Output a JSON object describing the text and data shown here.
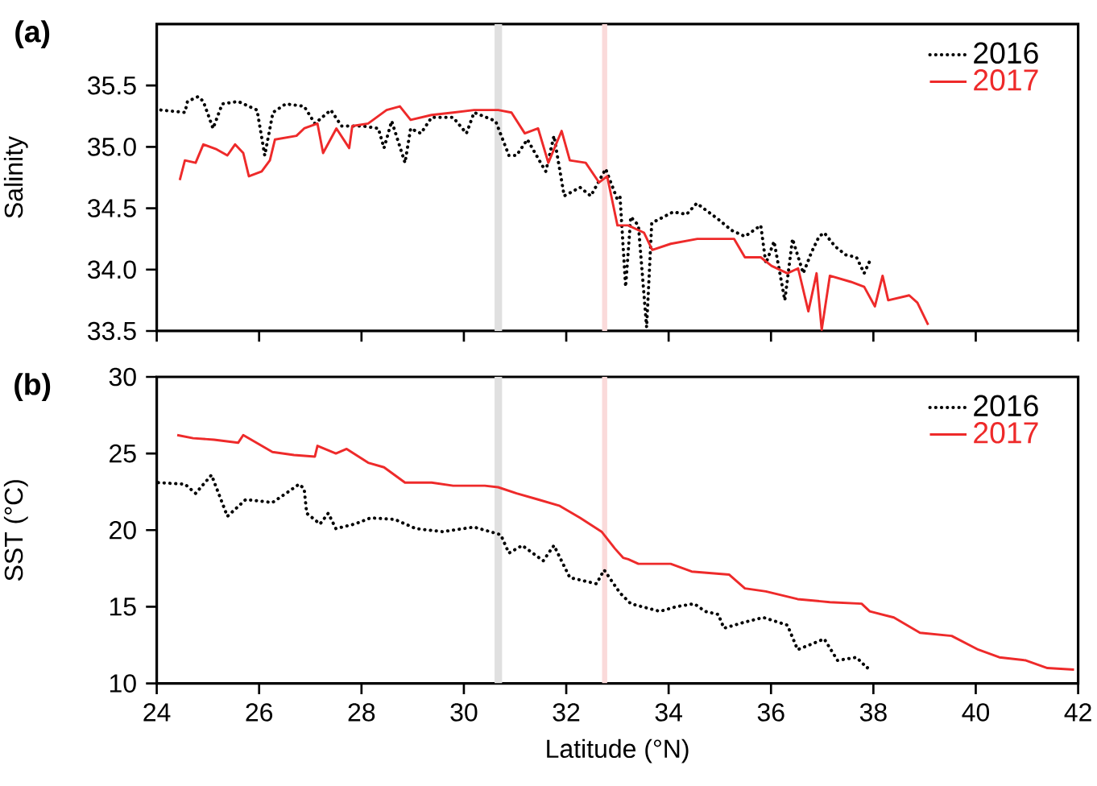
{
  "chart_data": [
    {
      "type": "line",
      "title": "(a)",
      "ylabel": "Salinity",
      "xlim": [
        24,
        42
      ],
      "xticks": [
        24,
        26,
        28,
        30,
        32,
        34,
        36,
        38,
        40,
        42
      ],
      "ylim": [
        33.5,
        36.0
      ],
      "yticks": [
        {
          "value": 33.5,
          "label": "33.5"
        },
        {
          "value": 34,
          "label": "34.0"
        },
        {
          "value": 34.5,
          "label": "34.5"
        },
        {
          "value": 35,
          "label": "35.0"
        },
        {
          "value": 35.5,
          "label": "35.5"
        }
      ],
      "tick_labels": "y",
      "legend": "top right",
      "grid": false,
      "bands": [
        {
          "axis": "x",
          "from": 30.6,
          "to": 30.75,
          "color": "#e0e0e0"
        },
        {
          "axis": "x",
          "from": 32.7,
          "to": 32.8,
          "color": "#fadada"
        }
      ],
      "series": [
        {
          "name": "2016",
          "color": "#000000",
          "line_style": "dotted",
          "x": [
            24.08,
            24.55,
            24.6,
            24.81,
            24.91,
            25.1,
            25.28,
            25.59,
            25.96,
            26.11,
            26.27,
            26.52,
            26.88,
            27.09,
            27.4,
            27.61,
            28.02,
            28.33,
            28.44,
            28.59,
            28.85,
            28.96,
            29.16,
            29.37,
            29.79,
            30.05,
            30.2,
            30.62,
            30.88,
            31.03,
            31.24,
            31.5,
            31.6,
            31.76,
            31.96,
            32.27,
            32.48,
            32.77,
            32.99,
            33.05,
            33.16,
            33.26,
            33.41,
            33.57,
            33.67,
            34.09,
            34.35,
            34.55,
            34.97,
            35.23,
            35.49,
            35.8,
            35.9,
            36.06,
            36.27,
            36.42,
            36.63,
            36.79,
            36.94,
            37.04,
            37.25,
            37.46,
            37.67,
            37.82,
            37.93
          ],
          "values": [
            35.3,
            35.28,
            35.37,
            35.41,
            35.37,
            35.15,
            35.35,
            35.37,
            35.3,
            34.93,
            35.28,
            35.35,
            35.33,
            35.19,
            35.3,
            35.17,
            35.17,
            35.15,
            34.99,
            35.21,
            34.87,
            35.15,
            35.11,
            35.24,
            35.24,
            35.11,
            35.28,
            35.21,
            34.93,
            34.93,
            35.06,
            34.87,
            34.8,
            35.09,
            34.6,
            34.67,
            34.6,
            34.82,
            34.58,
            34.6,
            33.86,
            34.43,
            34.36,
            33.53,
            34.38,
            34.47,
            34.45,
            34.54,
            34.41,
            34.32,
            34.27,
            34.36,
            34.05,
            34.23,
            33.75,
            34.25,
            33.97,
            34.14,
            34.27,
            34.3,
            34.19,
            34.12,
            34.1,
            33.97,
            34.07
          ]
        },
        {
          "name": "2017",
          "color": "#ee2a2a",
          "line_style": "solid",
          "x": [
            24.45,
            24.55,
            24.76,
            24.91,
            25.17,
            25.38,
            25.53,
            25.69,
            25.8,
            26.05,
            26.21,
            26.31,
            26.73,
            26.88,
            27.14,
            27.25,
            27.51,
            27.76,
            27.82,
            28.13,
            28.49,
            28.75,
            28.96,
            29.37,
            29.79,
            30.2,
            30.67,
            30.93,
            31.19,
            31.45,
            31.65,
            31.91,
            32.07,
            32.38,
            32.64,
            32.8,
            33.0,
            33.21,
            33.52,
            33.68,
            34.04,
            34.56,
            35.28,
            35.49,
            35.8,
            36.01,
            36.32,
            36.53,
            36.73,
            36.89,
            36.99,
            37.15,
            37.56,
            37.82,
            38.03,
            38.18,
            38.29,
            38.7,
            38.86,
            39.07
          ],
          "values": [
            34.73,
            34.89,
            34.87,
            35.02,
            34.98,
            34.93,
            35.02,
            34.95,
            34.76,
            34.8,
            34.89,
            35.06,
            35.09,
            35.15,
            35.19,
            34.95,
            35.15,
            34.99,
            35.17,
            35.19,
            35.3,
            35.33,
            35.22,
            35.26,
            35.28,
            35.3,
            35.3,
            35.28,
            35.11,
            35.15,
            34.87,
            35.13,
            34.89,
            34.87,
            34.71,
            34.76,
            34.36,
            34.36,
            34.3,
            34.16,
            34.21,
            34.25,
            34.25,
            34.1,
            34.1,
            34.03,
            33.97,
            34.01,
            33.66,
            33.97,
            33.51,
            33.95,
            33.9,
            33.86,
            33.7,
            33.95,
            33.75,
            33.79,
            33.73,
            33.55
          ]
        }
      ]
    },
    {
      "type": "line",
      "title": "(b)",
      "ylabel": "SST (°C)",
      "xlabel": "Latitude (°N)",
      "xlim": [
        24,
        42
      ],
      "xticks": [
        24,
        26,
        28,
        30,
        32,
        34,
        36,
        38,
        40,
        42
      ],
      "ylim": [
        10,
        30
      ],
      "yticks": [
        10,
        15,
        20,
        25,
        30
      ],
      "legend": "top right",
      "grid": false,
      "bands": [
        {
          "axis": "x",
          "from": 30.6,
          "to": 30.75,
          "color": "#e0e0e0"
        },
        {
          "axis": "x",
          "from": 32.7,
          "to": 32.8,
          "color": "#fadada"
        }
      ],
      "series": [
        {
          "name": "2016",
          "color": "#000000",
          "line_style": "dotted",
          "x": [
            24.03,
            24.55,
            24.76,
            25.07,
            25.38,
            25.74,
            26.26,
            26.57,
            26.78,
            26.88,
            26.93,
            27.19,
            27.35,
            27.5,
            27.87,
            28.18,
            28.65,
            29.06,
            29.58,
            30.2,
            30.72,
            30.88,
            31.14,
            31.55,
            31.76,
            32.07,
            32.59,
            32.74,
            33.05,
            33.26,
            33.83,
            34.14,
            34.5,
            34.71,
            34.97,
            35.08,
            35.49,
            35.85,
            36.32,
            36.52,
            37.04,
            37.3,
            37.67,
            37.88,
            37.93
          ],
          "values": [
            23.1,
            23.0,
            22.4,
            23.6,
            20.9,
            22.0,
            21.8,
            22.5,
            23.0,
            22.7,
            21.1,
            20.4,
            21.1,
            20.1,
            20.4,
            20.8,
            20.7,
            20.1,
            19.9,
            20.2,
            19.7,
            18.5,
            19.0,
            18.0,
            19.0,
            16.9,
            16.5,
            17.4,
            15.9,
            15.2,
            14.7,
            15.0,
            15.2,
            14.7,
            14.5,
            13.6,
            14.0,
            14.3,
            13.8,
            12.2,
            12.9,
            11.5,
            11.7,
            11.0,
            11.3
          ]
        },
        {
          "name": "2017",
          "color": "#ee2a2a",
          "line_style": "solid",
          "x": [
            24.4,
            24.71,
            25.12,
            25.59,
            25.69,
            26.26,
            26.68,
            27.09,
            27.14,
            27.5,
            27.71,
            28.13,
            28.44,
            28.85,
            29.37,
            29.79,
            30.41,
            30.67,
            31.03,
            31.45,
            31.86,
            32.27,
            32.69,
            32.95,
            33.11,
            33.21,
            33.41,
            34.04,
            34.45,
            35.18,
            35.49,
            35.9,
            36.52,
            37.15,
            37.77,
            37.93,
            38.4,
            38.91,
            39.53,
            40.05,
            40.46,
            40.98,
            41.4,
            41.92
          ],
          "values": [
            26.2,
            26.0,
            25.9,
            25.7,
            26.2,
            25.1,
            24.9,
            24.8,
            25.5,
            25.0,
            25.3,
            24.4,
            24.1,
            23.1,
            23.1,
            22.9,
            22.9,
            22.8,
            22.4,
            22.0,
            21.6,
            20.8,
            19.9,
            18.8,
            18.2,
            18.1,
            17.8,
            17.8,
            17.3,
            17.1,
            16.2,
            16.0,
            15.5,
            15.3,
            15.2,
            14.7,
            14.3,
            13.3,
            13.1,
            12.2,
            11.7,
            11.5,
            11.0,
            10.9
          ]
        }
      ]
    }
  ]
}
